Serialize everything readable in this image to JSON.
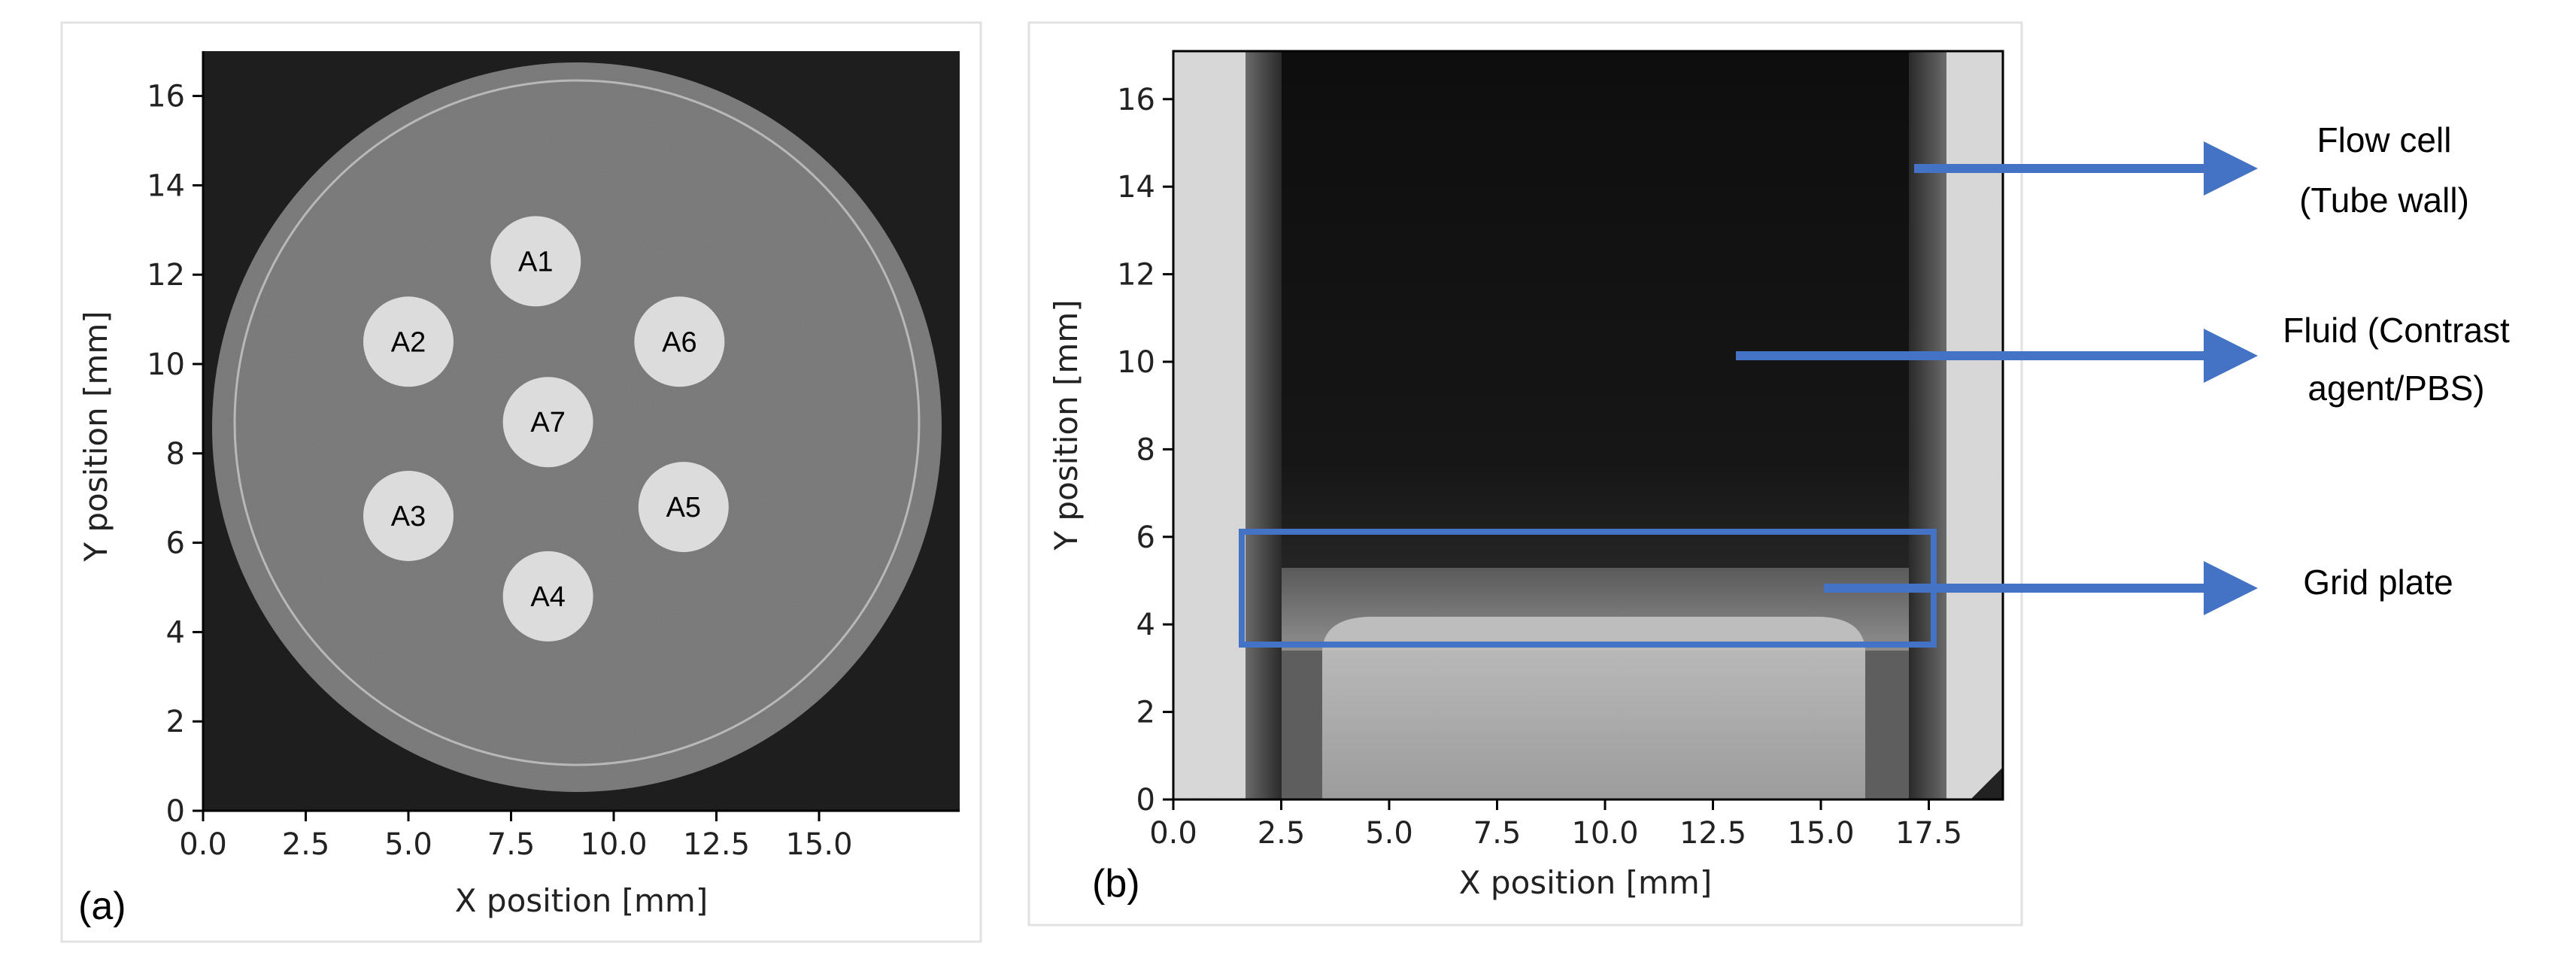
{
  "panel_a": {
    "panel_label": "(a)",
    "xlabel": "X position [mm]",
    "ylabel": "Y position [mm]",
    "xticks": [
      "0.0",
      "2.5",
      "5.0",
      "7.5",
      "10.0",
      "12.5",
      "15.0"
    ],
    "yticks": [
      "0",
      "2",
      "4",
      "6",
      "8",
      "10",
      "12",
      "14",
      "16"
    ],
    "inserts": [
      {
        "label": "A1",
        "x": 8.1,
        "y": 12.3
      },
      {
        "label": "A2",
        "x": 5.0,
        "y": 10.5
      },
      {
        "label": "A6",
        "x": 11.6,
        "y": 10.5
      },
      {
        "label": "A7",
        "x": 8.4,
        "y": 8.7
      },
      {
        "label": "A3",
        "x": 5.0,
        "y": 6.6
      },
      {
        "label": "A5",
        "x": 11.7,
        "y": 6.8
      },
      {
        "label": "A4",
        "x": 8.4,
        "y": 4.8
      }
    ]
  },
  "panel_b": {
    "panel_label": "(b)",
    "xlabel": "X position [mm]",
    "ylabel": "Y position [mm]",
    "xticks": [
      "0.0",
      "2.5",
      "5.0",
      "7.5",
      "10.0",
      "12.5",
      "15.0",
      "17.5"
    ],
    "yticks": [
      "0",
      "2",
      "4",
      "6",
      "8",
      "10",
      "12",
      "14",
      "16"
    ]
  },
  "annotations": {
    "flow_cell_line1": "Flow cell",
    "flow_cell_line2": "(Tube wall)",
    "fluid_line1": "Fluid (Contrast",
    "fluid_line2": "agent/PBS)",
    "grid_plate": "Grid plate"
  },
  "colors": {
    "arrow": "#4472c4",
    "box": "#4472c4"
  }
}
